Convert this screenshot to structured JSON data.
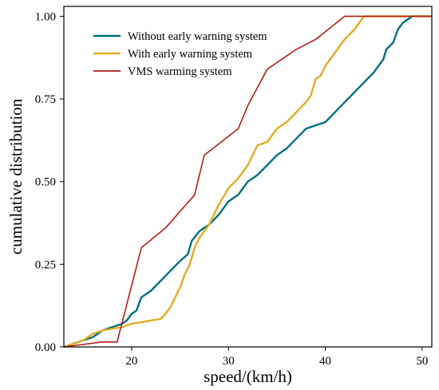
{
  "chart_data": {
    "type": "line",
    "xlabel": "speed/(km/h)",
    "ylabel": "cumulative distribution",
    "xlim": [
      13,
      51
    ],
    "ylim": [
      0,
      1.03
    ],
    "xticks": [
      20,
      30,
      40,
      50
    ],
    "yticks": [
      0.0,
      0.25,
      0.5,
      0.75,
      1.0
    ],
    "xtick_labels": [
      "20",
      "30",
      "40",
      "50"
    ],
    "ytick_labels": [
      "0.00",
      "0.25",
      "0.50",
      "0.75",
      "1.00"
    ],
    "grid": false,
    "legend_position": "top-left",
    "series": [
      {
        "name": "Without early warning system",
        "color": "#00707f",
        "points": [
          [
            13,
            0.0
          ],
          [
            15,
            0.02
          ],
          [
            16,
            0.03
          ],
          [
            17,
            0.05
          ],
          [
            18,
            0.06
          ],
          [
            19,
            0.07
          ],
          [
            19.5,
            0.08
          ],
          [
            20,
            0.1
          ],
          [
            20.5,
            0.11
          ],
          [
            21,
            0.15
          ],
          [
            22,
            0.17
          ],
          [
            23,
            0.2
          ],
          [
            24,
            0.23
          ],
          [
            25,
            0.26
          ],
          [
            25.8,
            0.28
          ],
          [
            26.2,
            0.32
          ],
          [
            27,
            0.35
          ],
          [
            28,
            0.37
          ],
          [
            29,
            0.4
          ],
          [
            30,
            0.44
          ],
          [
            31,
            0.46
          ],
          [
            32,
            0.5
          ],
          [
            33,
            0.52
          ],
          [
            34,
            0.55
          ],
          [
            35,
            0.58
          ],
          [
            36,
            0.6
          ],
          [
            37,
            0.63
          ],
          [
            38,
            0.66
          ],
          [
            39,
            0.67
          ],
          [
            40,
            0.68
          ],
          [
            41,
            0.71
          ],
          [
            42,
            0.74
          ],
          [
            43,
            0.77
          ],
          [
            44,
            0.8
          ],
          [
            45,
            0.83
          ],
          [
            46,
            0.87
          ],
          [
            46.3,
            0.9
          ],
          [
            47,
            0.92
          ],
          [
            47.5,
            0.96
          ],
          [
            48,
            0.98
          ],
          [
            49,
            1.0
          ],
          [
            51,
            1.0
          ]
        ]
      },
      {
        "name": "With  early warning system",
        "color": "#e4ac26",
        "points": [
          [
            13,
            0.0
          ],
          [
            15,
            0.02
          ],
          [
            16,
            0.04
          ],
          [
            17,
            0.05
          ],
          [
            18,
            0.055
          ],
          [
            19,
            0.06
          ],
          [
            20,
            0.07
          ],
          [
            21,
            0.075
          ],
          [
            22,
            0.08
          ],
          [
            23,
            0.085
          ],
          [
            23.5,
            0.1
          ],
          [
            24,
            0.12
          ],
          [
            25,
            0.18
          ],
          [
            25.5,
            0.22
          ],
          [
            26,
            0.25
          ],
          [
            26.5,
            0.3
          ],
          [
            27,
            0.33
          ],
          [
            28,
            0.37
          ],
          [
            29,
            0.43
          ],
          [
            30,
            0.48
          ],
          [
            31,
            0.51
          ],
          [
            32,
            0.55
          ],
          [
            33,
            0.61
          ],
          [
            34,
            0.62
          ],
          [
            35,
            0.66
          ],
          [
            36,
            0.68
          ],
          [
            37,
            0.71
          ],
          [
            38,
            0.74
          ],
          [
            38.5,
            0.76
          ],
          [
            39,
            0.81
          ],
          [
            39.5,
            0.82
          ],
          [
            40,
            0.85
          ],
          [
            41,
            0.89
          ],
          [
            42,
            0.93
          ],
          [
            43,
            0.96
          ],
          [
            44,
            1.0
          ],
          [
            51,
            1.0
          ]
        ]
      },
      {
        "name": "VMS warming system",
        "color": "#b71c1c",
        "points": [
          [
            13,
            0.0
          ],
          [
            17,
            0.015
          ],
          [
            18.5,
            0.015
          ],
          [
            21,
            0.3
          ],
          [
            23.5,
            0.36
          ],
          [
            26.5,
            0.46
          ],
          [
            27.5,
            0.58
          ],
          [
            31,
            0.66
          ],
          [
            32,
            0.73
          ],
          [
            34,
            0.84
          ],
          [
            37,
            0.9
          ],
          [
            39,
            0.93
          ],
          [
            42,
            1.0
          ],
          [
            51,
            1.0
          ]
        ]
      }
    ]
  }
}
